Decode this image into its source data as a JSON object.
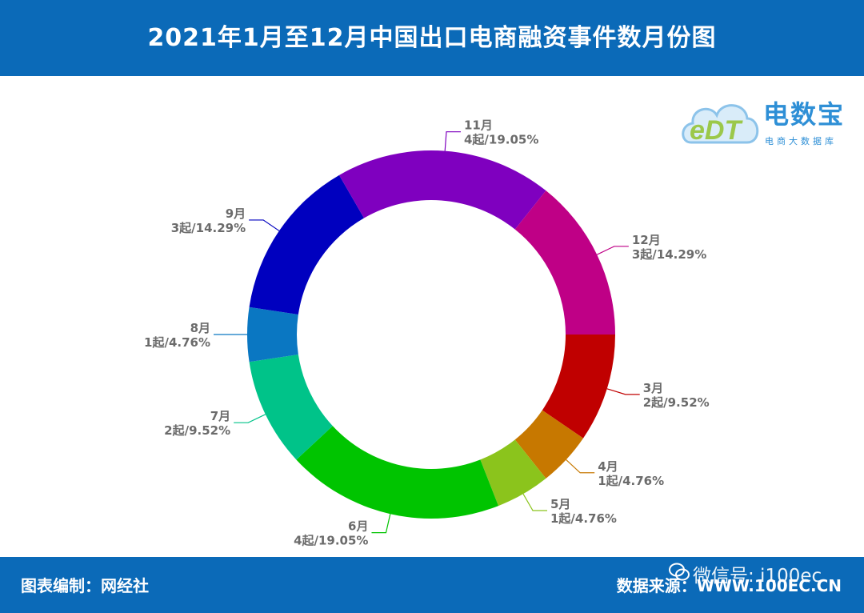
{
  "header": {
    "title": "2021年1月至12月中国出口电商融资事件数月份图"
  },
  "logo": {
    "brand": "电数宝",
    "mark": "eDT",
    "subtitle": "电商大数据库"
  },
  "footer": {
    "left": "图表编制：网经社",
    "right": "数据来源：WWW.100EC.CN"
  },
  "watermark": {
    "text": "微信号: i100ec",
    "icon": "wechat-icon"
  },
  "chart_data": {
    "type": "pie",
    "donut": true,
    "categories": [
      "3月",
      "4月",
      "5月",
      "6月",
      "7月",
      "8月",
      "9月",
      "11月",
      "12月"
    ],
    "values": [
      2,
      1,
      1,
      4,
      2,
      1,
      3,
      4,
      3
    ],
    "labels": [
      "2起/9.52%",
      "1起/4.76%",
      "1起/4.76%",
      "4起/19.05%",
      "2起/9.52%",
      "1起/4.76%",
      "3起/14.29%",
      "4起/19.05%",
      "3起/14.29%"
    ],
    "colors": [
      "#c00000",
      "#c77800",
      "#8bc41c",
      "#00c400",
      "#00c389",
      "#0a77c2",
      "#0000bf",
      "#7f00bf",
      "#bf0086"
    ],
    "start_angle": "3 o'clock",
    "direction": "clockwise"
  }
}
